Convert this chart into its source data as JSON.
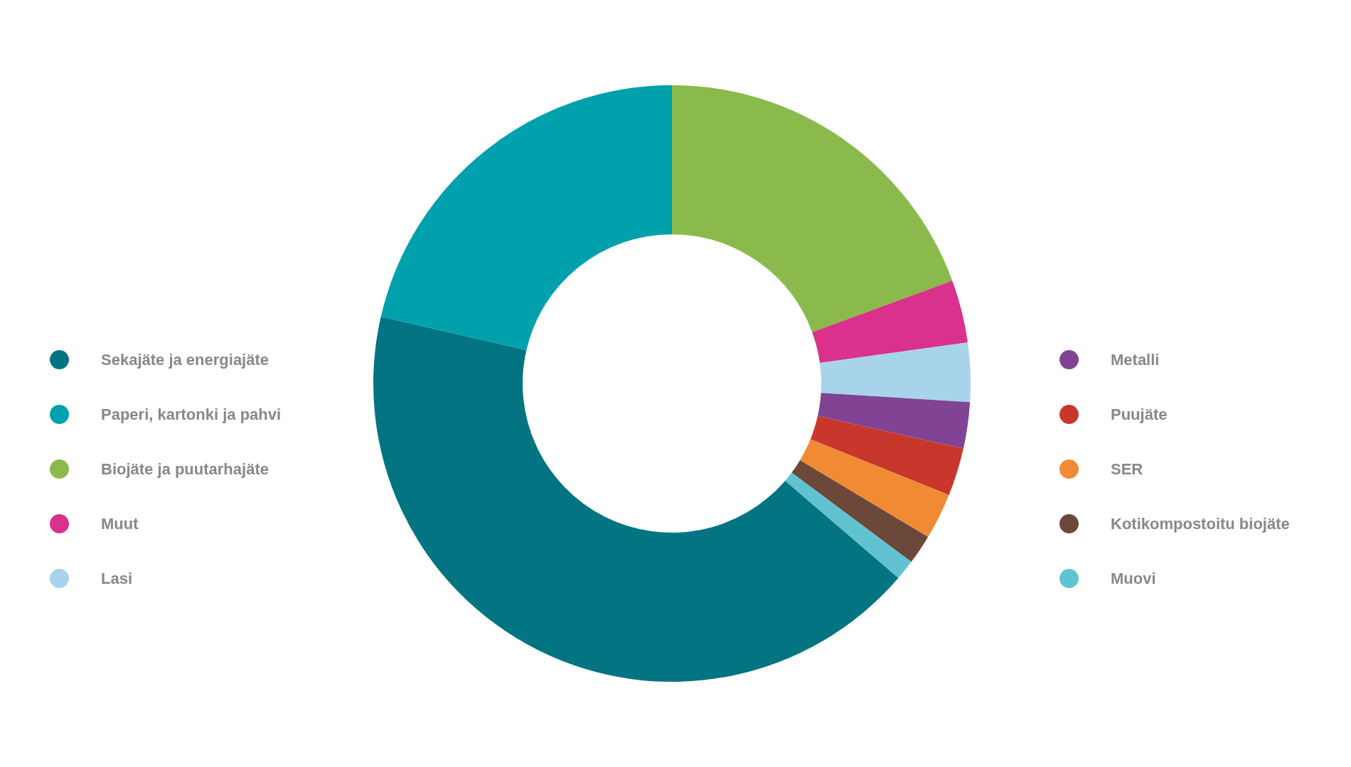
{
  "chart_data": {
    "type": "donut",
    "categories": [
      "Sekajäte ja energiajäte",
      "Paperi, kartonki ja pahvi",
      "Biojäte ja puutarhajäte",
      "Muut",
      "Lasi",
      "Metalli",
      "Puujäte",
      "SER",
      "Kotikompostoitu biojäte",
      "Muovi"
    ],
    "values": [
      42.3,
      21.4,
      19.4,
      3.4,
      3.2,
      2.5,
      2.6,
      2.5,
      1.6,
      1.1
    ],
    "colors": [
      "#037481",
      "#00a0ad",
      "#8ab94c",
      "#d9318c",
      "#a7d4ea",
      "#814394",
      "#c8372c",
      "#f08a33",
      "#6b4839",
      "#61c3cf"
    ],
    "legend": "left"
  }
}
